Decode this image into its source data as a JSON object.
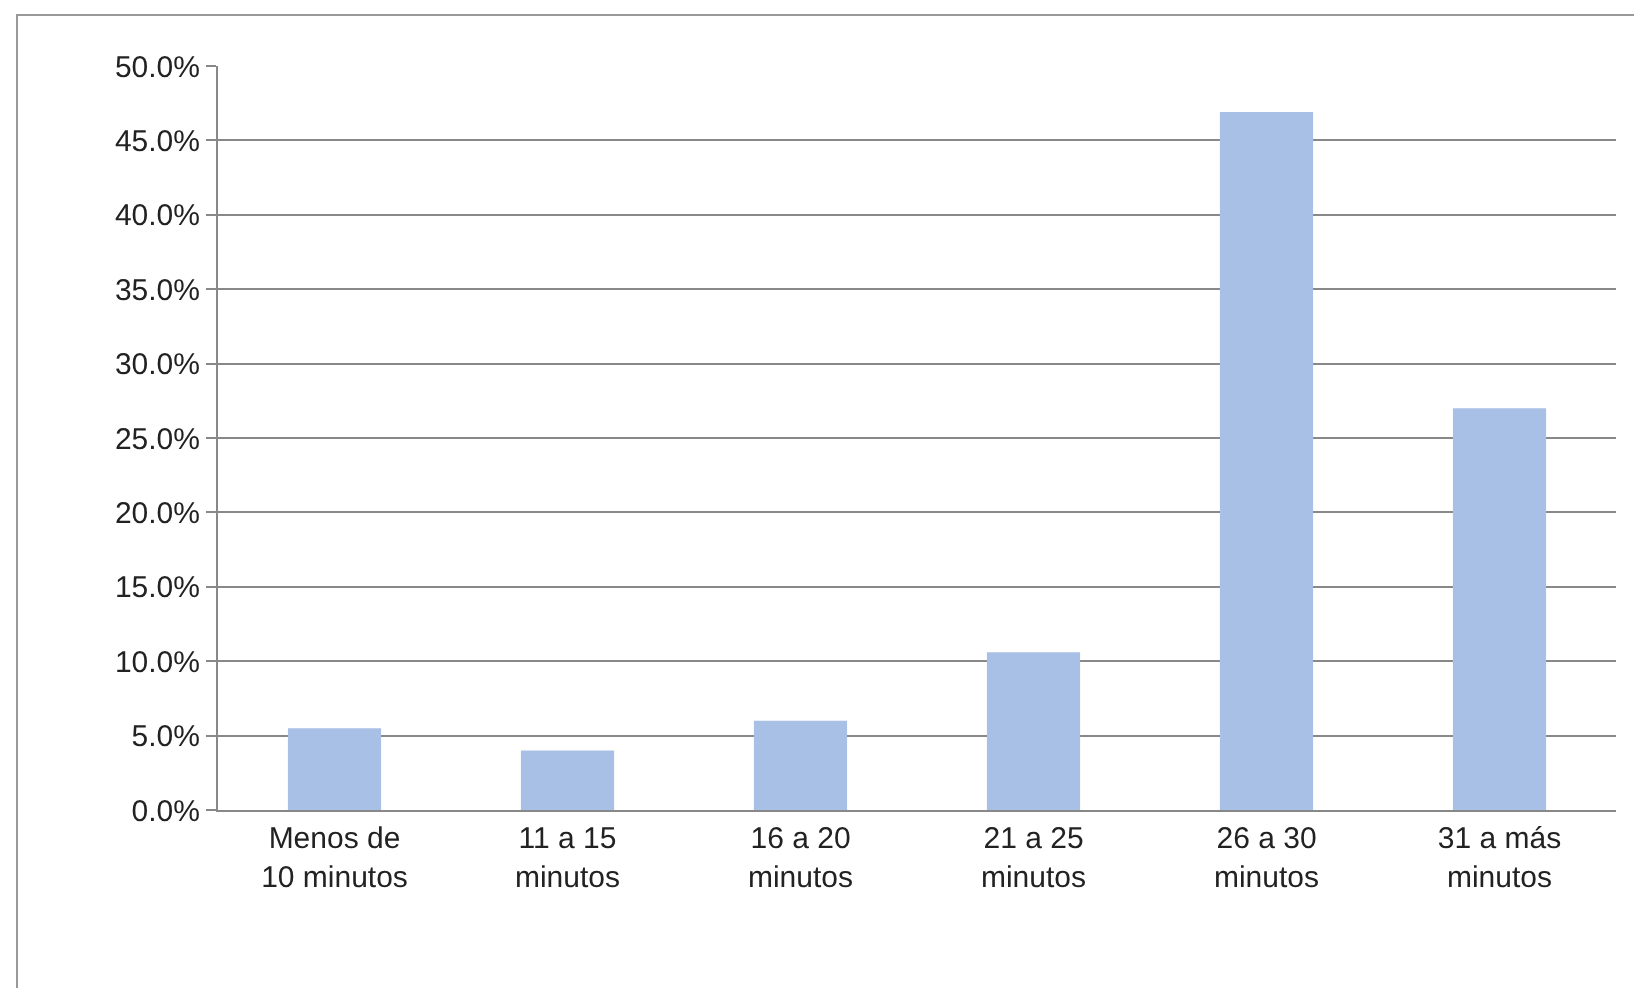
{
  "chart_data": {
    "type": "bar",
    "categories": [
      "Menos de\n10 minutos",
      "11 a 15\nminutos",
      "16 a 20\nminutos",
      "21 a 25\nminutos",
      "26 a 30\nminutos",
      "31 a más\nminutos"
    ],
    "values": [
      5.5,
      4.0,
      6.0,
      10.6,
      46.9,
      27.0
    ],
    "color": "#a9c0e6",
    "ylim": [
      0,
      50
    ],
    "yticks": [
      {
        "value": 0,
        "label": "0.0%"
      },
      {
        "value": 5,
        "label": "5.0%"
      },
      {
        "value": 10,
        "label": "10.0%"
      },
      {
        "value": 15,
        "label": "15.0%"
      },
      {
        "value": 20,
        "label": "20.0%"
      },
      {
        "value": 25,
        "label": "25.0%"
      },
      {
        "value": 30,
        "label": "30.0%"
      },
      {
        "value": 35,
        "label": "35.0%"
      },
      {
        "value": 40,
        "label": "40.0%"
      },
      {
        "value": 45,
        "label": "45.0%"
      },
      {
        "value": 50,
        "label": "50.0%"
      }
    ],
    "grid": "y"
  }
}
